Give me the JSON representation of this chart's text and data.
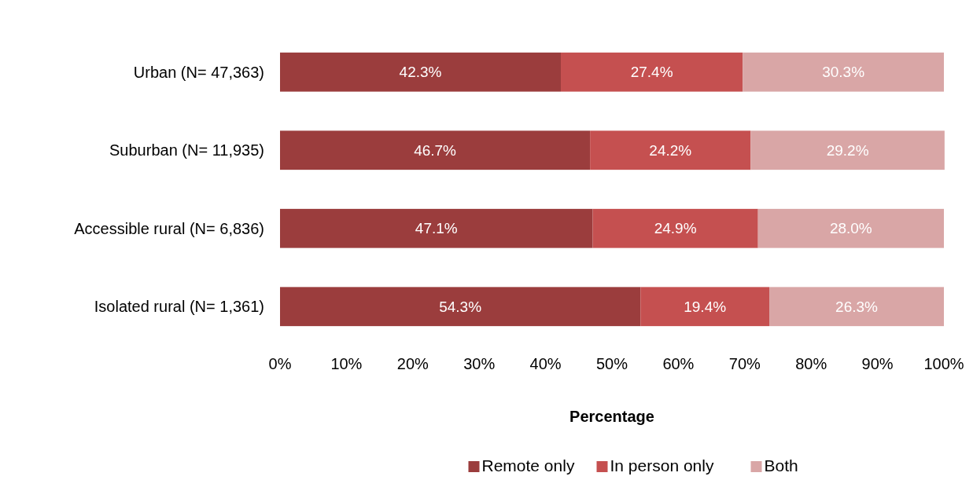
{
  "chart_data": {
    "type": "bar",
    "orientation": "horizontal",
    "stacked": true,
    "xlabel": "Percentage",
    "categories": [
      "Urban (N= 47,363)",
      "Suburban (N= 11,935)",
      "Accessible rural (N= 6,836)",
      "Isolated rural (N= 1,361)"
    ],
    "series": [
      {
        "name": "Remote only",
        "color": "#9b3d3d",
        "values": [
          42.3,
          46.7,
          47.1,
          54.3
        ],
        "value_labels": [
          "42.3%",
          "46.7%",
          "47.1%",
          "54.3%"
        ]
      },
      {
        "name": "In person only",
        "color": "#c55050",
        "values": [
          27.4,
          24.2,
          24.9,
          19.4
        ],
        "value_labels": [
          "27.4%",
          "24.2%",
          "24.9%",
          "19.4%"
        ]
      },
      {
        "name": "Both",
        "color": "#d9a6a6",
        "values": [
          30.3,
          29.2,
          28.0,
          26.3
        ],
        "value_labels": [
          "30.3%",
          "29.2%",
          "28.0%",
          "26.3%"
        ]
      }
    ],
    "xlim": [
      0,
      100
    ],
    "xticks": [
      {
        "value": 0,
        "label": "0%"
      },
      {
        "value": 10,
        "label": "10%"
      },
      {
        "value": 20,
        "label": "20%"
      },
      {
        "value": 30,
        "label": "30%"
      },
      {
        "value": 40,
        "label": "40%"
      },
      {
        "value": 50,
        "label": "50%"
      },
      {
        "value": 60,
        "label": "60%"
      },
      {
        "value": 70,
        "label": "70%"
      },
      {
        "value": 80,
        "label": "80%"
      },
      {
        "value": 90,
        "label": "90%"
      },
      {
        "value": 100,
        "label": "100%"
      }
    ],
    "grid": false,
    "legend": "bottom"
  }
}
